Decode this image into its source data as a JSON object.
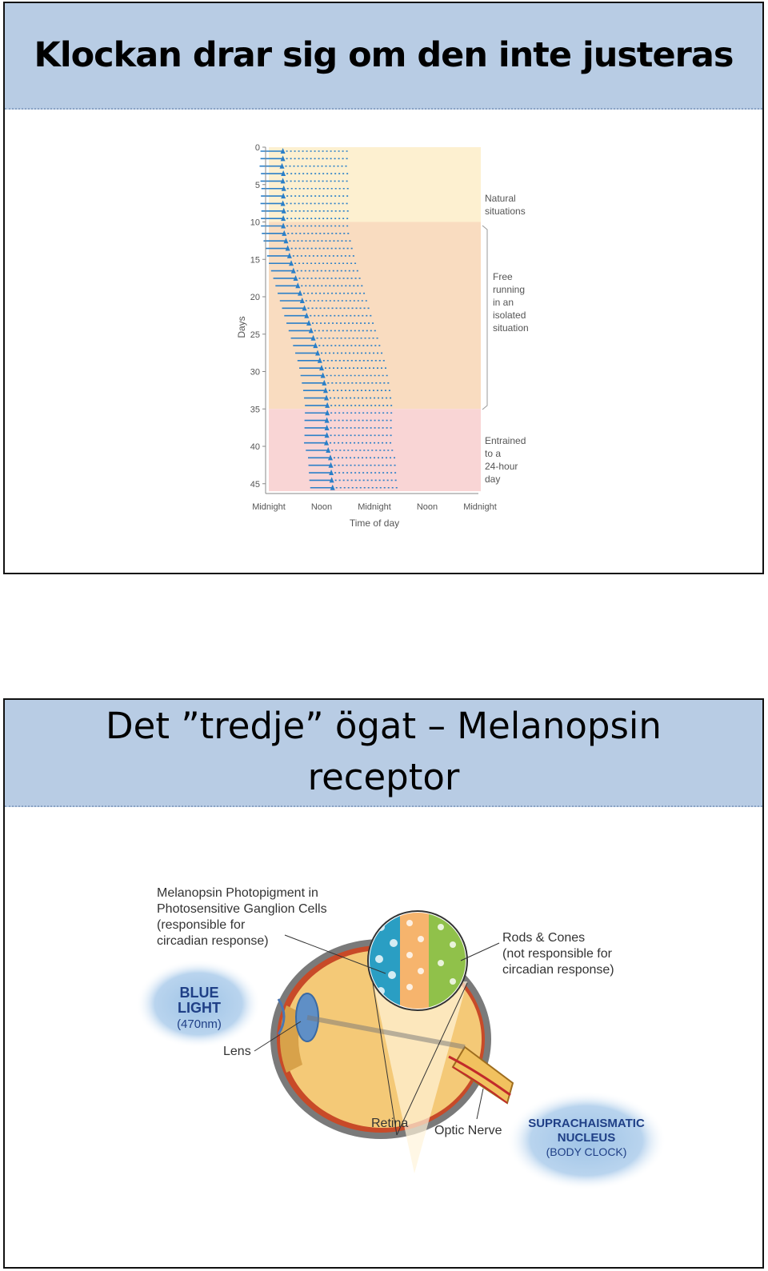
{
  "slide1": {
    "title": "Klockan drar sig om den inte justeras"
  },
  "chart_data": {
    "type": "actogram",
    "ylabel": "Days",
    "xlabel": "Time of day",
    "ylim": [
      0,
      46
    ],
    "y_ticks": [
      "0",
      "5",
      "10",
      "15",
      "20",
      "25",
      "30",
      "35",
      "40",
      "45"
    ],
    "x_ticks": [
      "Midnight",
      "Noon",
      "Midnight",
      "Noon",
      "Midnight"
    ],
    "x_range_hours": [
      0,
      48
    ],
    "phases": [
      {
        "name": "natural",
        "label_lines": [
          "Natural",
          "situations"
        ],
        "days": [
          0,
          10
        ],
        "color": "#fdf0d0"
      },
      {
        "name": "free-running",
        "label_lines": [
          "Free",
          "running",
          "in an",
          "isolated",
          "situation"
        ],
        "days": [
          10,
          35
        ],
        "color": "#f9dcc0"
      },
      {
        "name": "entrained",
        "label_lines": [
          "Entrained",
          "to a",
          "24-hour",
          "day"
        ],
        "days": [
          35,
          46
        ],
        "color": "#f9d5d5"
      }
    ],
    "activity_onset_hours": [
      3.2,
      3.2,
      3.0,
      3.3,
      3.2,
      3.4,
      3.3,
      3.2,
      3.4,
      3.3,
      3.3,
      3.5,
      3.9,
      4.3,
      4.7,
      5.1,
      5.6,
      6.1,
      6.6,
      7.1,
      7.6,
      8.1,
      8.6,
      9.1,
      9.6,
      10.1,
      10.6,
      11.1,
      11.6,
      12.0,
      12.3,
      12.6,
      12.9,
      13.1,
      13.3,
      13.3,
      13.2,
      13.2,
      13.2,
      13.1,
      13.5,
      14.0,
      14.1,
      14.2,
      14.3,
      14.5
    ],
    "activity_duration_hours": 10.5
  },
  "slide2": {
    "title_line1": "Det ”tredje” ögat – Melanopsin",
    "title_line2": "receptor"
  },
  "eye_figure": {
    "melanopsin_label": [
      "Melanopsin Photopigment in",
      "Photosensitive Ganglion Cells",
      "(responsible for",
      "circadian response)"
    ],
    "blue_light": [
      "BLUE",
      "LIGHT",
      "(470nm)"
    ],
    "rods_cones_label": [
      "Rods & Cones",
      "(not responsible for",
      "circadian response)"
    ],
    "lens": "Lens",
    "retina": "Retina",
    "optic_nerve": "Optic Nerve",
    "scn": [
      "SUPRACHAISMATIC",
      "NUCLEUS",
      "(BODY CLOCK)"
    ]
  }
}
